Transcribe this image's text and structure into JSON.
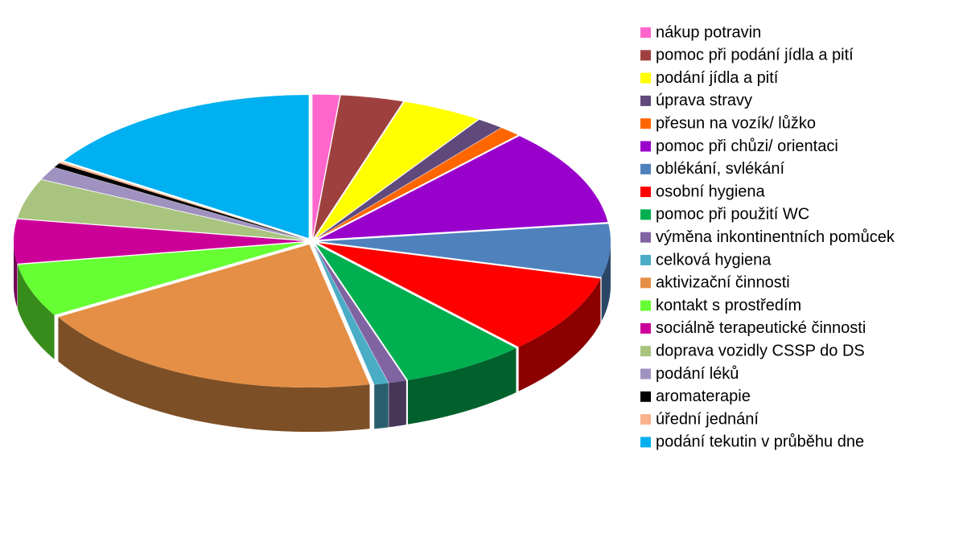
{
  "chart_data": {
    "type": "pie",
    "categories": [
      "nákup potravin",
      "pomoc při podání jídla a pití",
      "podání jídla a pití",
      "úprava stravy",
      "přesun na vozík/ lůžko",
      "pomoc při chůzi/ orientaci",
      "oblékání, svlékání",
      "osobní hygiena",
      "pomoc při použití WC",
      "výměna inkontinentních pomůcek",
      "celková hygiena",
      "aktivizační činnosti",
      "kontakt s prostředím",
      "sociálně terapeutické činnosti",
      "doprava vozidly CSSP do DS",
      "podání léků",
      "aromaterapie",
      "úřední jednání",
      "podání tekutin v průběhu dne"
    ],
    "values": [
      1.5,
      3.5,
      4.5,
      1.5,
      1.2,
      11,
      6,
      9,
      7,
      1,
      0.8,
      20,
      6,
      5,
      4.5,
      1.5,
      0.5,
      0.2,
      16
    ],
    "colors": [
      "#ff66cc",
      "#9e413e",
      "#ffff00",
      "#604a7b",
      "#ff6600",
      "#9900cc",
      "#4f81bd",
      "#ff0000",
      "#00b050",
      "#8064a2",
      "#4bacc6",
      "#e48f45",
      "#66ff33",
      "#cc0099",
      "#a9c47f",
      "#a092c0",
      "#000000",
      "#fab38d",
      "#00b0f0"
    ],
    "legend": "right"
  }
}
